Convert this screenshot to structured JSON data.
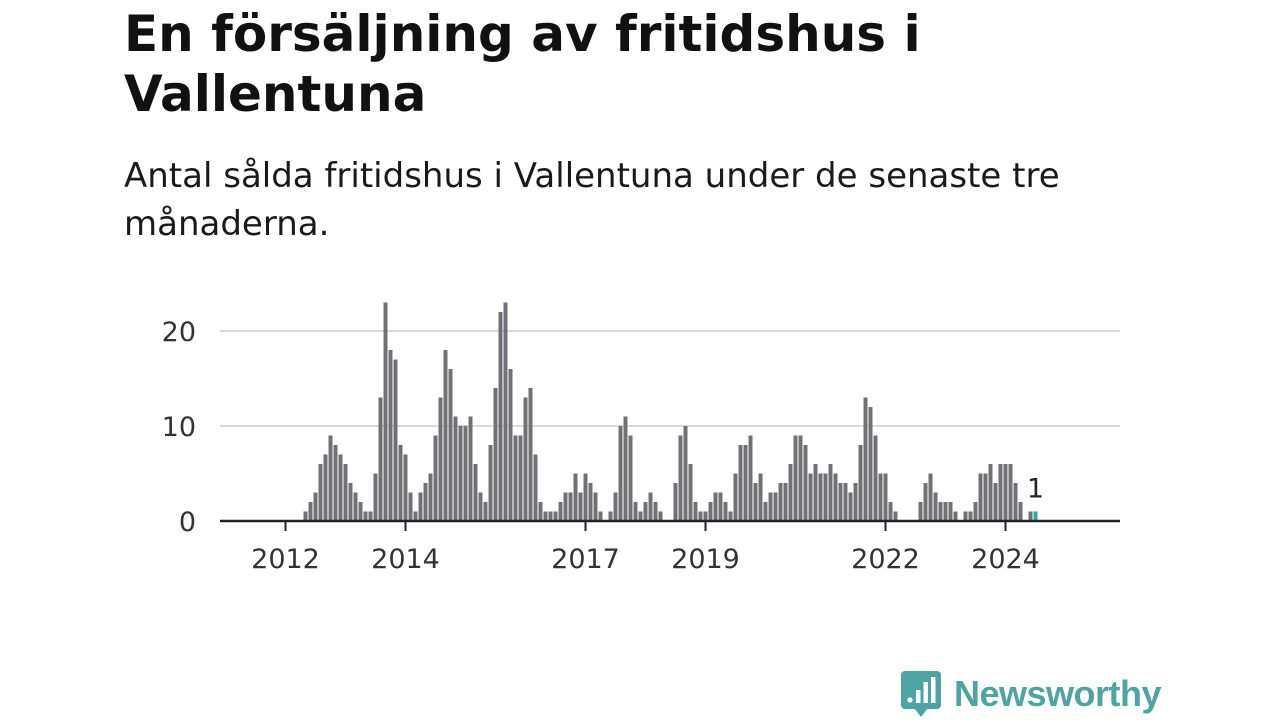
{
  "title": "En försäljning av fritidshus i Vallentuna",
  "subtitle": "Antal sålda fritidshus i Vallentuna under de senaste tre månaderna.",
  "brand": {
    "name": "Newsworthy",
    "color": "#4ea3a3",
    "logo_icon": "bar-chart-bubble-icon"
  },
  "chart_data": {
    "type": "bar",
    "title": "",
    "xlabel": "",
    "ylabel": "",
    "start_month": "2011-09",
    "end_month": "2024-03",
    "ylim": [
      0,
      23
    ],
    "yticks": [
      0,
      10,
      20
    ],
    "xtick_labels": [
      "2012",
      "2014",
      "2017",
      "2019",
      "2022",
      "2024"
    ],
    "grid": "horizontal",
    "bar_color": "#717075",
    "highlight_color": "#2aa7a9",
    "highlight_label": "1",
    "values": [
      0,
      0,
      0,
      0,
      0,
      0,
      0,
      0,
      1,
      2,
      3,
      6,
      7,
      9,
      8,
      7,
      6,
      4,
      3,
      2,
      1,
      1,
      5,
      13,
      23,
      18,
      17,
      8,
      7,
      3,
      1,
      3,
      4,
      5,
      9,
      13,
      18,
      16,
      11,
      10,
      10,
      11,
      6,
      3,
      2,
      8,
      14,
      22,
      23,
      16,
      9,
      9,
      13,
      14,
      7,
      2,
      1,
      1,
      1,
      2,
      3,
      3,
      5,
      3,
      5,
      4,
      3,
      1,
      0,
      1,
      3,
      10,
      11,
      9,
      2,
      1,
      2,
      3,
      2,
      1,
      0,
      0,
      4,
      9,
      10,
      6,
      2,
      1,
      1,
      2,
      3,
      3,
      2,
      1,
      5,
      8,
      8,
      9,
      4,
      5,
      2,
      3,
      3,
      4,
      4,
      6,
      9,
      9,
      8,
      5,
      6,
      5,
      5,
      6,
      5,
      4,
      4,
      3,
      4,
      8,
      13,
      12,
      9,
      5,
      5,
      2,
      1,
      0,
      0,
      0,
      0,
      2,
      4,
      5,
      3,
      2,
      2,
      2,
      1,
      0,
      1,
      1,
      2,
      5,
      5,
      6,
      4,
      6,
      6,
      6,
      4,
      2,
      0,
      1,
      1
    ]
  }
}
